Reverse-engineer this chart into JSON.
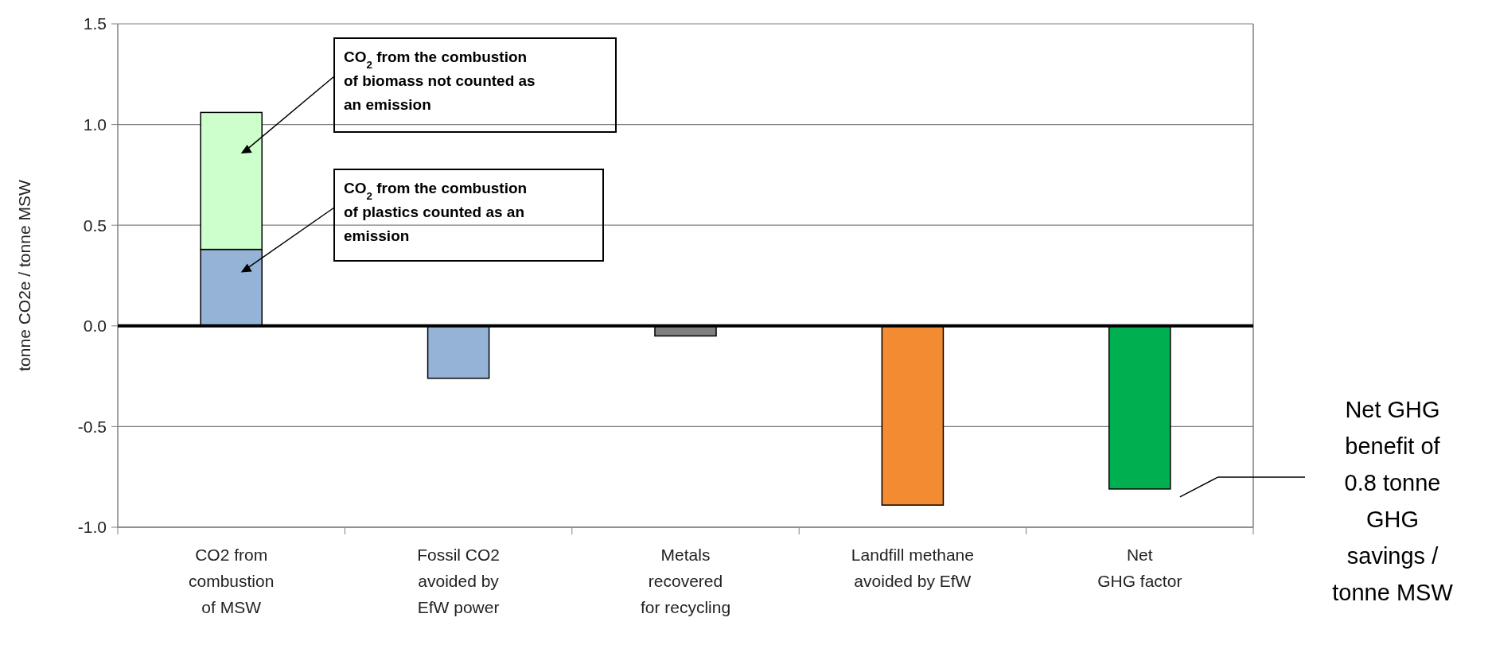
{
  "chart_data": {
    "type": "bar",
    "stacked": true,
    "ylabel": "tonne CO2e / tonne MSW",
    "categories": [
      "CO2 from\ncombustion\nof MSW",
      "Fossil CO2\navoided by\nEfW power",
      "Metals\nrecovered\nfor recycling",
      "Landfill methane\navoided by EfW",
      "Net\nGHG factor"
    ],
    "series": [
      {
        "colors": [
          "#95b3d7",
          "#95b3d7",
          "#808080",
          "#f38b33",
          "#00b050"
        ],
        "values": [
          0.38,
          -0.26,
          -0.05,
          -0.89,
          -0.81
        ]
      },
      {
        "color": "#ccffcc",
        "values": [
          0.68,
          null,
          null,
          null,
          null
        ]
      }
    ],
    "ylim": [
      -1.0,
      1.5
    ],
    "yticks": [
      {
        "value": -1,
        "label": "-1.0"
      },
      {
        "value": -0.5,
        "label": "-0.5"
      },
      {
        "value": 0,
        "label": "0.0"
      },
      {
        "value": 0.5,
        "label": "0.5"
      },
      {
        "value": 1,
        "label": "1.0"
      },
      {
        "value": 1.5,
        "label": "1.5"
      }
    ],
    "grid": "y",
    "annotations": [
      "CO$_{2}$ from the combustion of biomass not counted as an emission",
      "CO$_{2}$ from the combustion of plastics counted as an emission",
      "Net GHG benefit of 0.8 tonne GHG savings / tonne MSW"
    ]
  }
}
